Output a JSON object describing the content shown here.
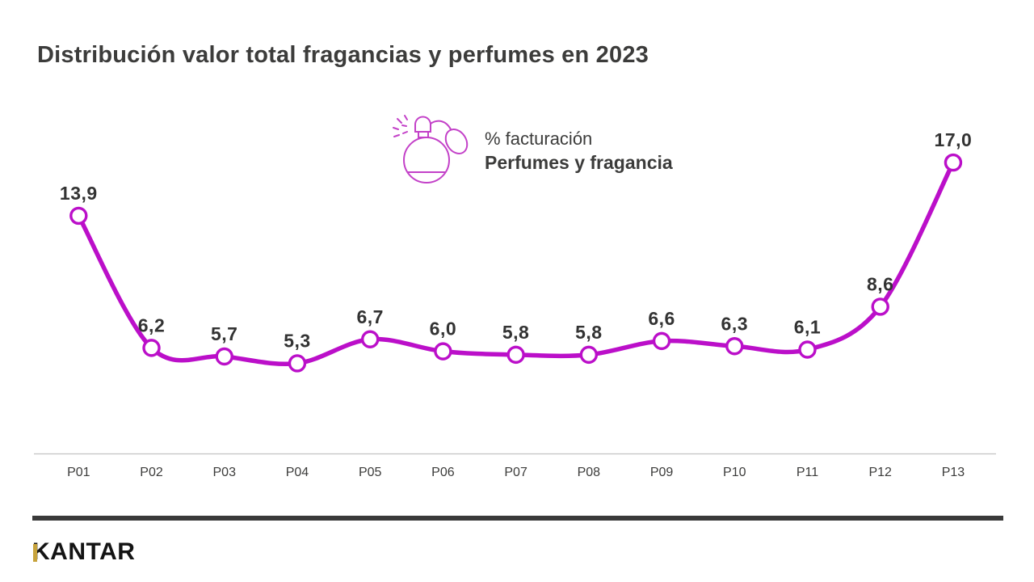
{
  "header": {
    "title": "Distribución valor total fragancias y perfumes en 2023"
  },
  "legend": {
    "icon": "perfume-atomizer-icon",
    "line1": "% facturación",
    "line2": "Perfumes y fragancia"
  },
  "chart_data": {
    "type": "line",
    "title": "Distribución valor total fragancias y perfumes en 2023",
    "categories": [
      "P01",
      "P02",
      "P03",
      "P04",
      "P05",
      "P06",
      "P07",
      "P08",
      "P09",
      "P10",
      "P11",
      "P12",
      "P13"
    ],
    "series": [
      {
        "name": "Perfumes y fragancia",
        "values": [
          13.9,
          6.2,
          5.7,
          5.3,
          6.7,
          6.0,
          5.8,
          5.8,
          6.6,
          6.3,
          6.1,
          8.6,
          17.0
        ]
      }
    ],
    "unit": "% facturación",
    "decimal_separator": ",",
    "ylim": [
      0,
      18
    ],
    "grid": false,
    "markers": "circle-white-filled",
    "data_labels": true,
    "smoothed": true,
    "legend_position": "top-center"
  },
  "footer": {
    "logo_text": "KANTAR"
  },
  "colors": {
    "line": "#BB0FC9",
    "icon_stroke": "#C341C8",
    "text_dark": "#3C3C3B",
    "data_label": "#333333",
    "axis": "#C3C3C3",
    "marker_fill": "#FFFFFF",
    "footer_bar": "#3A3A3A",
    "logo_black": "#141414",
    "logo_gold": "#C7A33C"
  }
}
